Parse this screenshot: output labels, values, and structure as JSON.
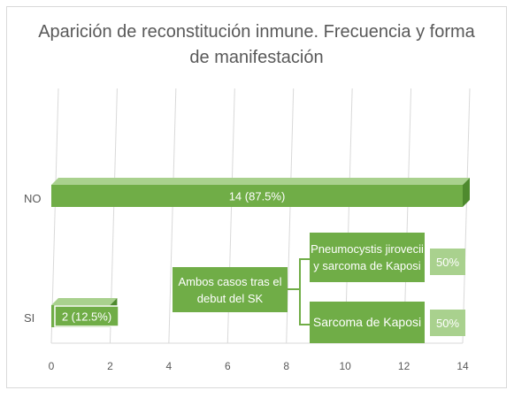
{
  "chart_data": {
    "type": "bar",
    "orientation": "horizontal",
    "title": "Aparición de reconstitución inmune. Frecuencia y forma de manifestación",
    "categories": [
      "NO",
      "SI"
    ],
    "values": [
      14,
      2
    ],
    "data_labels": [
      "14 (87.5%)",
      "2 (12.5%)"
    ],
    "xlim": [
      0,
      14
    ],
    "x_ticks": [
      "0",
      "2",
      "4",
      "6",
      "8",
      "10",
      "12",
      "14"
    ],
    "grid": "vertical gridlines",
    "legend": "none",
    "colors": {
      "bar": "#70ad47",
      "bar_light": "#a9d18e",
      "grid": "#d9d9d9",
      "text": "#595959"
    },
    "annotations": {
      "root": "Ambos casos tras el debut del SK",
      "branches": [
        {
          "label": "Pneumocystis jirovecii y sarcoma de Kaposi",
          "percent": "50%"
        },
        {
          "label": "Sarcoma de Kaposi",
          "percent": "50%"
        }
      ]
    }
  }
}
